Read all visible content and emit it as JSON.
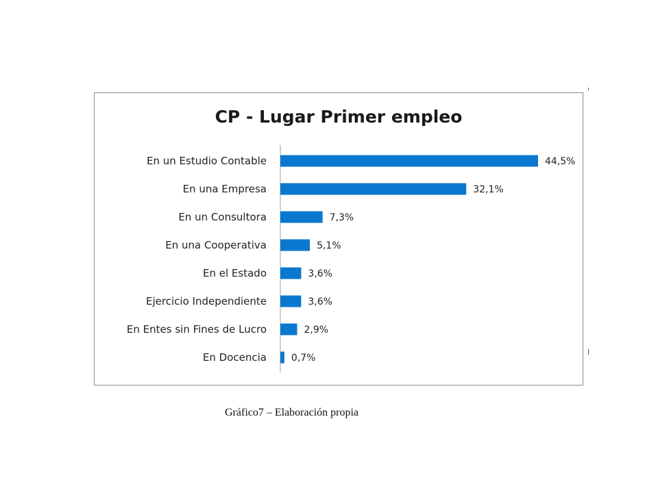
{
  "chart_data": {
    "type": "bar",
    "orientation": "horizontal",
    "title": "CP - Lugar Primer empleo",
    "categories": [
      "En un Estudio Contable",
      "En una Empresa",
      "En un Consultora",
      "En una Cooperativa",
      "En el Estado",
      "Ejercicio Independiente",
      "En Entes sin Fines de Lucro",
      "En Docencia"
    ],
    "values": [
      44.5,
      32.1,
      7.3,
      5.1,
      3.6,
      3.6,
      2.9,
      0.7
    ],
    "value_labels": [
      "44,5%",
      "32,1%",
      "7,3%",
      "5,1%",
      "3,6%",
      "3,6%",
      "2,9%",
      "0,7%"
    ],
    "xlim": [
      0,
      44.5
    ],
    "grid": false,
    "legend": "none",
    "bar_color": "#0b78d0"
  },
  "caption": "Gráfico7 – Elaboración propia"
}
